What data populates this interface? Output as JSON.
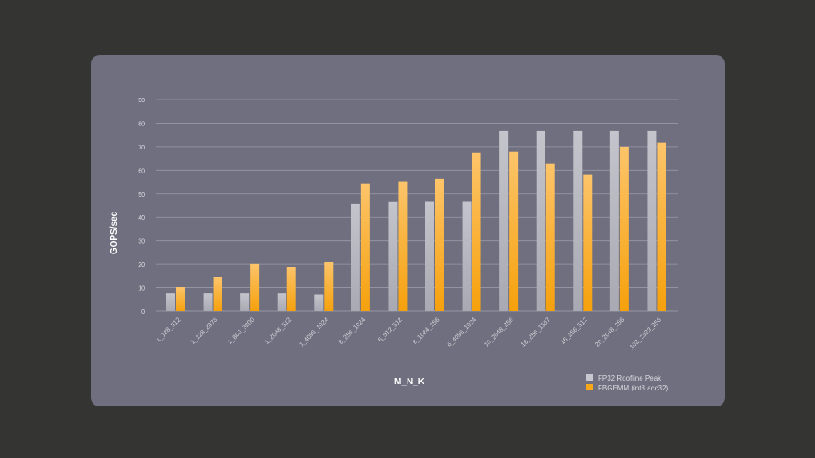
{
  "chart_data": {
    "type": "bar",
    "title": "",
    "xlabel": "M_N_K",
    "ylabel": "GOPS/sec",
    "ylim": [
      0,
      90
    ],
    "yticks": [
      0,
      10,
      20,
      30,
      40,
      50,
      60,
      70,
      80,
      90
    ],
    "grid": true,
    "legend_position": "bottom-right",
    "categories": [
      "1_128_512",
      "1_128_2876",
      "1_800_3200",
      "1_2048_512",
      "1_4096_1024",
      "6_256_1024",
      "6_512_512",
      "6_1024_256",
      "6_4096_1024",
      "10_2048_256",
      "16_256_1567",
      "16_256_512",
      "20_2048_256",
      "102_2323_256"
    ],
    "series": [
      {
        "name": "FP32 Roofline Peak",
        "color": "#b9b9c3",
        "values": [
          7.5,
          7.5,
          7.5,
          7.5,
          7,
          45.8,
          46.6,
          46.7,
          46.7,
          76.8,
          76.8,
          76.8,
          76.8,
          76.8
        ]
      },
      {
        "name": "FBGEMM (int8 acc32)",
        "color": "#f8a91a",
        "values": [
          10.2,
          14.4,
          20.1,
          18.9,
          20.8,
          54.2,
          55,
          56.4,
          67.4,
          67.8,
          62.9,
          58,
          70,
          71.6
        ]
      }
    ]
  }
}
